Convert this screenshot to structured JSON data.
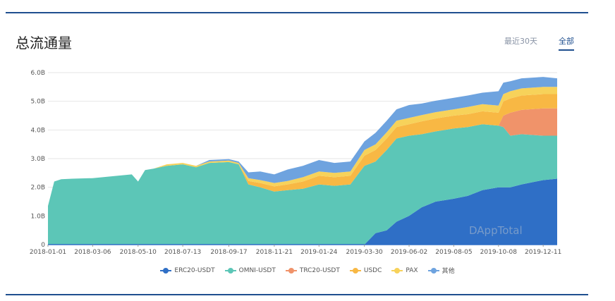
{
  "header": {
    "title": "总流通量"
  },
  "range_tabs": [
    {
      "label": "最近30天",
      "active": false
    },
    {
      "label": "全部",
      "active": true
    }
  ],
  "watermark": "DAppTotal",
  "colors": {
    "ERC20-USDT": "#2f6fc6",
    "OMNI-USDT": "#5cc6b7",
    "TRC20-USDT": "#f0936a",
    "USDC": "#f8b844",
    "PAX": "#f7d25a",
    "其他": "#6ea3df"
  },
  "chart_data": {
    "type": "area",
    "stacked": true,
    "title": "",
    "xlabel": "",
    "ylabel": "",
    "ylim": [
      0,
      6.0
    ],
    "y_ticks": [
      "0",
      "1.0B",
      "2.0B",
      "3.0B",
      "4.0B",
      "5.0B",
      "6.0B"
    ],
    "grid": true,
    "legend_position": "bottom",
    "x_tick_labels": [
      "2018-01-01",
      "2018-03-06",
      "2018-05-10",
      "2018-07-13",
      "2018-09-17",
      "2018-11-21",
      "2019-01-24",
      "2019-03-30",
      "2019-06-02",
      "2019-08-05",
      "2019-10-08",
      "2019-12-11"
    ],
    "x": [
      "2018-01-01",
      "2018-01-10",
      "2018-01-20",
      "2018-02-05",
      "2018-03-06",
      "2018-04-10",
      "2018-05-01",
      "2018-05-10",
      "2018-05-20",
      "2018-06-01",
      "2018-06-20",
      "2018-07-13",
      "2018-08-01",
      "2018-08-20",
      "2018-09-17",
      "2018-10-01",
      "2018-10-15",
      "2018-11-01",
      "2018-11-21",
      "2018-12-10",
      "2019-01-01",
      "2019-01-24",
      "2019-02-15",
      "2019-03-10",
      "2019-03-30",
      "2019-04-15",
      "2019-05-01",
      "2019-05-15",
      "2019-06-02",
      "2019-06-20",
      "2019-07-10",
      "2019-08-05",
      "2019-08-25",
      "2019-09-15",
      "2019-10-08",
      "2019-10-15",
      "2019-10-25",
      "2019-11-10",
      "2019-12-11",
      "2019-12-31"
    ],
    "series": [
      {
        "name": "ERC20-USDT",
        "values": [
          0,
          0,
          0,
          0,
          0,
          0,
          0,
          0,
          0,
          0,
          0,
          0,
          0,
          0,
          0,
          0,
          0,
          0,
          0,
          0,
          0,
          0,
          0,
          0,
          0,
          0.4,
          0.5,
          0.8,
          1.0,
          1.3,
          1.5,
          1.6,
          1.7,
          1.9,
          2.0,
          2.0,
          2.0,
          2.1,
          2.25,
          2.3
        ]
      },
      {
        "name": "OMNI-USDT",
        "values": [
          1.35,
          2.2,
          2.28,
          2.3,
          2.32,
          2.4,
          2.45,
          2.2,
          2.6,
          2.65,
          2.75,
          2.8,
          2.7,
          2.85,
          2.88,
          2.8,
          2.1,
          2.0,
          1.85,
          1.9,
          1.95,
          2.1,
          2.05,
          2.1,
          2.75,
          2.5,
          2.8,
          2.9,
          2.8,
          2.55,
          2.45,
          2.45,
          2.4,
          2.3,
          2.15,
          2.1,
          1.8,
          1.75,
          1.55,
          1.5
        ]
      },
      {
        "name": "TRC20-USDT",
        "values": [
          0,
          0,
          0,
          0,
          0,
          0,
          0,
          0,
          0,
          0,
          0,
          0,
          0,
          0,
          0,
          0,
          0,
          0,
          0,
          0,
          0,
          0,
          0,
          0,
          0,
          0,
          0,
          0,
          0,
          0,
          0,
          0,
          0,
          0,
          0,
          0.4,
          0.8,
          0.85,
          0.95,
          0.95
        ]
      },
      {
        "name": "USDC",
        "values": [
          0,
          0,
          0,
          0,
          0,
          0,
          0,
          0,
          0,
          0,
          0,
          0,
          0,
          0,
          0,
          0,
          0.12,
          0.15,
          0.18,
          0.2,
          0.25,
          0.3,
          0.3,
          0.3,
          0.35,
          0.4,
          0.4,
          0.4,
          0.4,
          0.45,
          0.45,
          0.45,
          0.45,
          0.45,
          0.45,
          0.5,
          0.5,
          0.5,
          0.5,
          0.5
        ]
      },
      {
        "name": "PAX",
        "values": [
          0,
          0,
          0,
          0,
          0,
          0,
          0,
          0,
          0,
          0,
          0.05,
          0.05,
          0.05,
          0.05,
          0.05,
          0.05,
          0.1,
          0.1,
          0.12,
          0.12,
          0.15,
          0.15,
          0.15,
          0.15,
          0.2,
          0.2,
          0.22,
          0.22,
          0.22,
          0.22,
          0.22,
          0.22,
          0.25,
          0.25,
          0.25,
          0.25,
          0.25,
          0.25,
          0.25,
          0.25
        ]
      },
      {
        "name": "其他",
        "values": [
          0,
          0,
          0,
          0,
          0,
          0,
          0,
          0,
          0,
          0,
          0,
          0,
          0,
          0.05,
          0.05,
          0.05,
          0.2,
          0.3,
          0.3,
          0.4,
          0.4,
          0.4,
          0.35,
          0.35,
          0.3,
          0.4,
          0.4,
          0.4,
          0.45,
          0.4,
          0.4,
          0.4,
          0.4,
          0.4,
          0.5,
          0.4,
          0.35,
          0.35,
          0.35,
          0.3
        ]
      }
    ]
  }
}
